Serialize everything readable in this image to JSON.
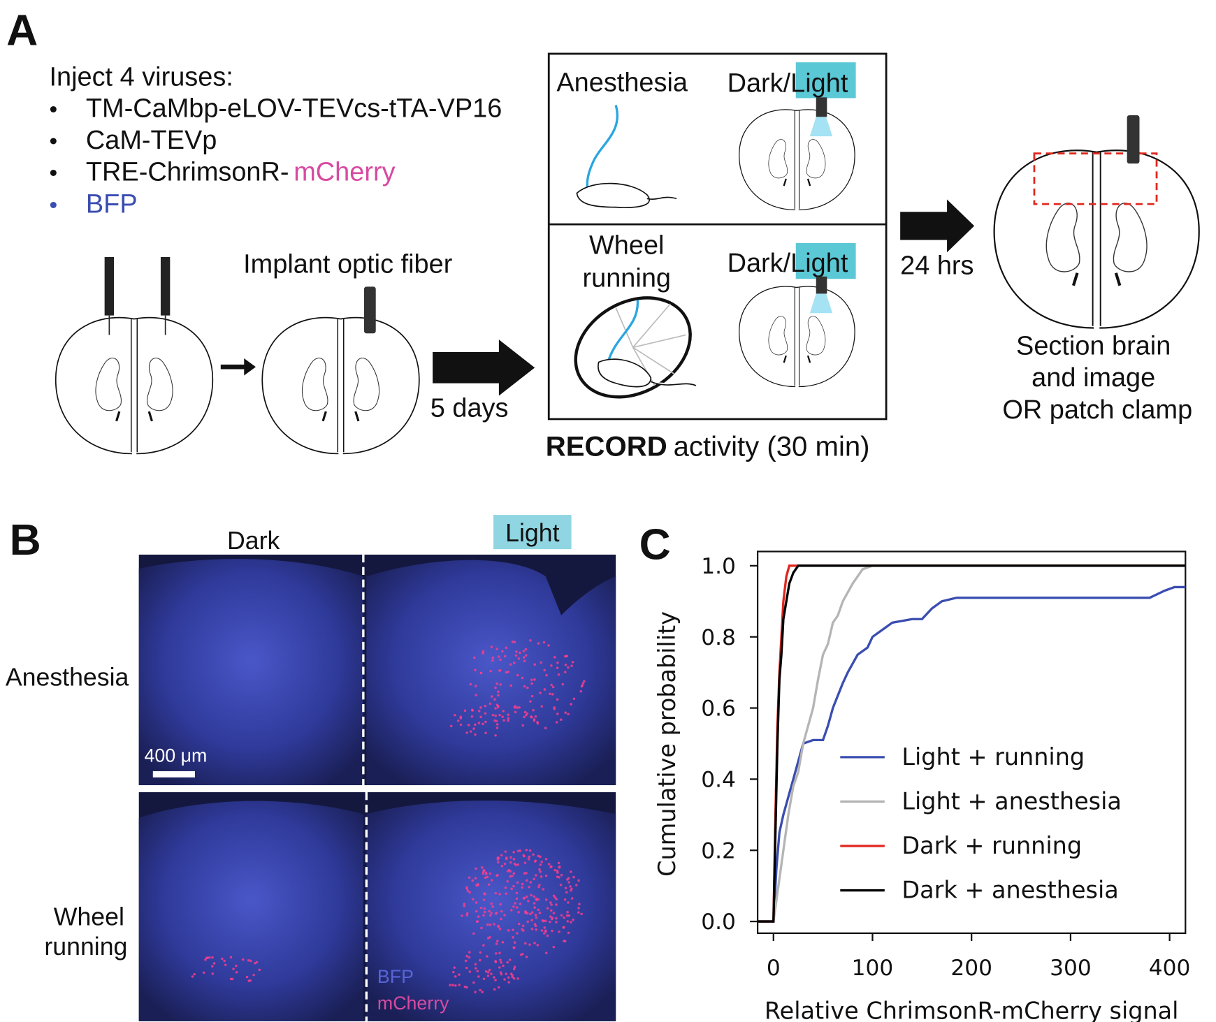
{
  "panel_a": {
    "label": "A",
    "inject_title": "Inject 4 viruses:",
    "viruses": [
      {
        "bullet": "•",
        "text": "TM-CaMbp-eLOV-TEVcs-tTA-VP16"
      },
      {
        "bullet": "•",
        "text": "CaM-TEVp"
      },
      {
        "bullet": "•",
        "text": "TRE-ChrimsonR-",
        "highlight": "mCherry"
      },
      {
        "bullet": "•",
        "text": "BFP"
      }
    ],
    "implant": "Implant optic fiber",
    "wait1": "5 days",
    "box": {
      "top_condition": "Anesthesia",
      "bottom_condition": [
        "Wheel",
        "running"
      ],
      "dark": "Dark/",
      "light": "Light"
    },
    "record_bold": "RECORD",
    "record_rest": "activity (30 min)",
    "wait2": "24 hrs",
    "final": [
      "Section brain",
      "and image",
      "OR patch clamp"
    ]
  },
  "panel_b": {
    "label": "B",
    "col_dark": "Dark",
    "col_light": "Light",
    "row_1": "Anesthesia",
    "row_2": [
      "Wheel",
      "running"
    ],
    "scale_bar": "400 μm",
    "channel_1": "BFP",
    "channel_2": "mCherry"
  },
  "chart_data": {
    "type": "line",
    "panel_label": "C",
    "xlabel": "Relative ChrimsonR-mCherry signal",
    "ylabel": "Cumulative probability",
    "xlim": [
      -16,
      416
    ],
    "ylim": [
      -0.033,
      1.04
    ],
    "xticks": [
      0,
      100,
      200,
      300,
      400
    ],
    "yticks": [
      {
        "value": 0,
        "label": "0.0"
      },
      0.2,
      0.4,
      0.6,
      0.8,
      {
        "value": 1,
        "label": "1.0"
      }
    ],
    "legend": "center-right",
    "series": [
      {
        "name": "Light + running",
        "color": "#3a4db0",
        "x": [
          -16,
          0,
          3,
          6,
          10,
          15,
          20,
          25,
          30,
          40,
          50,
          55,
          60,
          70,
          75,
          85,
          95,
          100,
          110,
          120,
          140,
          150,
          160,
          170,
          185,
          300,
          380,
          395,
          405,
          416
        ],
        "values": [
          0,
          0,
          0.15,
          0.25,
          0.3,
          0.35,
          0.4,
          0.45,
          0.5,
          0.51,
          0.51,
          0.55,
          0.6,
          0.67,
          0.7,
          0.75,
          0.77,
          0.8,
          0.82,
          0.84,
          0.85,
          0.85,
          0.88,
          0.9,
          0.91,
          0.91,
          0.91,
          0.93,
          0.94,
          0.94
        ]
      },
      {
        "name": "Light + anesthesia",
        "color": "#b5b5b5",
        "x": [
          -16,
          0,
          5,
          10,
          15,
          20,
          25,
          30,
          40,
          45,
          50,
          55,
          60,
          65,
          70,
          80,
          90,
          100,
          416
        ],
        "values": [
          0,
          0,
          0.1,
          0.2,
          0.3,
          0.38,
          0.42,
          0.5,
          0.6,
          0.68,
          0.75,
          0.78,
          0.84,
          0.86,
          0.9,
          0.95,
          0.99,
          1,
          1
        ]
      },
      {
        "name": "Dark + running",
        "color": "#e0281e",
        "x": [
          -16,
          0,
          2,
          4,
          6,
          8,
          10,
          13,
          16,
          416
        ],
        "values": [
          0,
          0,
          0.3,
          0.55,
          0.7,
          0.8,
          0.9,
          0.97,
          1,
          1
        ]
      },
      {
        "name": "Dark + anesthesia",
        "color": "#000000",
        "x": [
          -16,
          0,
          2,
          4,
          6,
          8,
          10,
          13,
          16,
          20,
          25,
          416
        ],
        "values": [
          0,
          0,
          0.25,
          0.5,
          0.68,
          0.75,
          0.85,
          0.9,
          0.95,
          0.98,
          1,
          1
        ]
      }
    ]
  }
}
